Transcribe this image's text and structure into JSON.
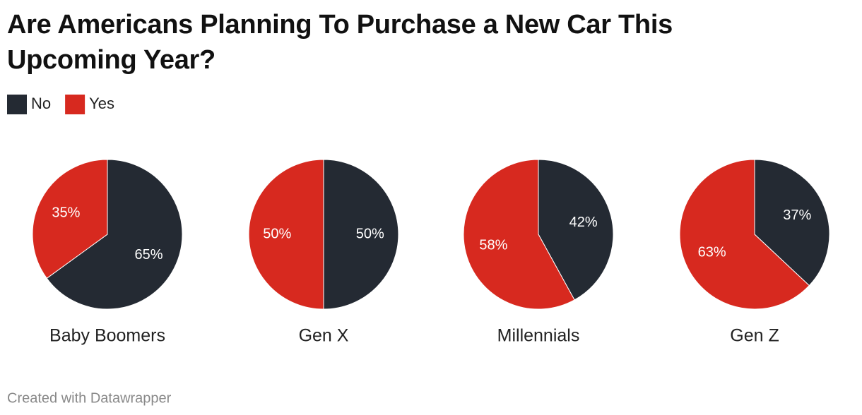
{
  "chart_data": {
    "type": "pie",
    "title": "Are Americans Planning To Purchase a New Car This Upcoming Year?",
    "categories": [
      "Baby Boomers",
      "Gen X",
      "Millennials",
      "Gen Z"
    ],
    "series": [
      {
        "name": "No",
        "color": "#242a33",
        "values": [
          65,
          50,
          42,
          37
        ],
        "value_labels": [
          "65%",
          "50%",
          "42%",
          "37%"
        ]
      },
      {
        "name": "Yes",
        "color": "#d7291f",
        "values": [
          35,
          50,
          58,
          63
        ],
        "value_labels": [
          "35%",
          "50%",
          "58%",
          "63%"
        ]
      }
    ],
    "footer": "Created with Datawrapper"
  }
}
